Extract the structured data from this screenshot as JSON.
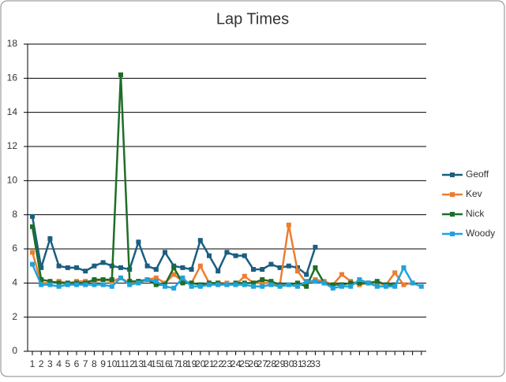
{
  "chart_data": {
    "type": "line",
    "title": "Lap Times",
    "categories": [
      "1",
      "2",
      "3",
      "4",
      "5",
      "6",
      "7",
      "8",
      "9",
      "10",
      "11",
      "12",
      "13",
      "14",
      "15",
      "16",
      "17",
      "18",
      "19",
      "20",
      "21",
      "22",
      "23",
      "24",
      "25",
      "26",
      "27",
      "28",
      "29",
      "30",
      "31",
      "32",
      "33",
      null,
      null,
      null,
      null,
      null,
      null,
      null,
      null,
      null,
      null,
      null,
      null
    ],
    "series": [
      {
        "name": "Geoff",
        "color": "#1a5e80",
        "values": [
          7.9,
          4.9,
          6.6,
          5.0,
          4.9,
          4.9,
          4.7,
          5.0,
          5.2,
          5.0,
          4.9,
          4.8,
          6.4,
          5.0,
          4.8,
          5.8,
          5.0,
          4.9,
          4.8,
          6.5,
          5.6,
          4.7,
          5.8,
          5.6,
          5.6,
          4.8,
          4.8,
          5.1,
          4.9,
          5.0,
          4.9,
          4.5,
          6.1,
          null,
          null,
          null,
          null,
          null,
          null,
          null,
          null,
          null,
          null,
          null,
          null
        ]
      },
      {
        "name": "Kev",
        "color": "#ed7d31",
        "values": [
          5.8,
          4.0,
          4.0,
          4.1,
          4.0,
          4.1,
          4.1,
          4.1,
          4.2,
          4.1,
          4.3,
          4.0,
          4.1,
          4.2,
          4.3,
          4.0,
          4.5,
          4.1,
          4.0,
          5.0,
          4.0,
          4.0,
          4.0,
          3.9,
          4.4,
          4.0,
          4.0,
          4.0,
          3.9,
          7.4,
          4.7,
          4.0,
          4.2,
          4.1,
          3.9,
          4.5,
          4.1,
          3.9,
          4.0,
          4.0,
          3.9,
          4.6,
          3.9,
          4.0,
          null
        ]
      },
      {
        "name": "Nick",
        "color": "#1e6e28",
        "values": [
          7.3,
          4.2,
          4.1,
          4.0,
          4.0,
          4.0,
          4.0,
          4.2,
          4.2,
          4.2,
          16.2,
          4.1,
          4.1,
          4.2,
          3.9,
          3.9,
          4.9,
          4.0,
          4.0,
          3.9,
          4.0,
          4.0,
          3.9,
          4.0,
          4.0,
          4.0,
          4.2,
          4.1,
          3.9,
          3.9,
          4.0,
          3.8,
          4.9,
          4.0,
          3.9,
          3.9,
          4.0,
          4.0,
          4.0,
          4.1,
          3.9,
          3.9,
          null,
          null,
          null
        ]
      },
      {
        "name": "Woody",
        "color": "#1fa3da",
        "values": [
          5.1,
          3.9,
          3.9,
          3.8,
          3.9,
          3.9,
          3.9,
          3.9,
          3.9,
          3.8,
          4.3,
          3.9,
          4.0,
          4.2,
          4.1,
          3.8,
          3.7,
          4.3,
          3.8,
          3.8,
          3.9,
          3.9,
          3.9,
          3.9,
          3.9,
          3.8,
          3.8,
          3.9,
          3.8,
          3.9,
          3.8,
          4.1,
          4.1,
          4.0,
          3.7,
          3.8,
          3.8,
          4.2,
          4.0,
          3.8,
          3.8,
          3.8,
          4.9,
          4.0,
          3.8
        ]
      }
    ],
    "ylim": [
      0,
      18
    ],
    "yticks": [
      0,
      2,
      4,
      6,
      8,
      10,
      12,
      14,
      16,
      18
    ],
    "grid": true,
    "legend": "right"
  }
}
